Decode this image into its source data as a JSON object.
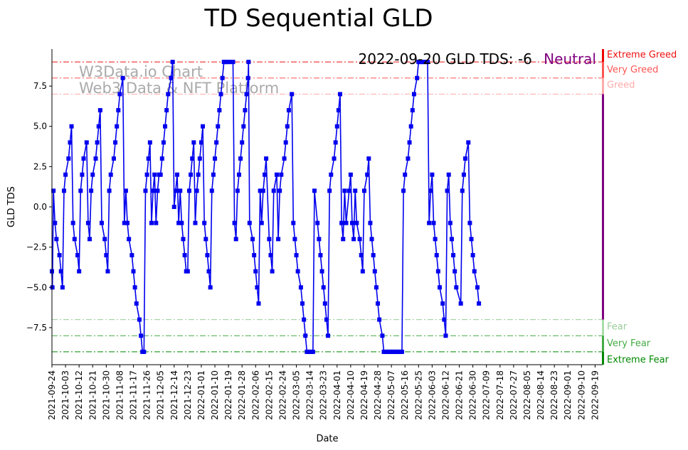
{
  "chart_data": {
    "type": "line",
    "title": "TD Sequential GLD",
    "xlabel": "Date",
    "ylabel": "GLD TDS",
    "ylim": [
      -9.8,
      9.8
    ],
    "y_ticks": [
      -7.5,
      -5.0,
      -2.5,
      0.0,
      2.5,
      5.0,
      7.5
    ],
    "y_tick_labels": [
      "−7.5",
      "−5.0",
      "−2.5",
      "0.0",
      "2.5",
      "5.0",
      "7.5"
    ],
    "x_start": "2021-09-24",
    "x_end": "2022-09-20",
    "x_tick_labels": [
      "2021-09-24",
      "2021-10-03",
      "2021-10-12",
      "2021-10-21",
      "2021-10-30",
      "2021-11-08",
      "2021-11-17",
      "2021-11-26",
      "2021-12-05",
      "2021-12-14",
      "2021-12-23",
      "2022-01-01",
      "2022-01-10",
      "2022-01-19",
      "2022-01-28",
      "2022-02-06",
      "2022-02-15",
      "2022-02-24",
      "2022-03-05",
      "2022-03-14",
      "2022-03-23",
      "2022-04-01",
      "2022-04-10",
      "2022-04-19",
      "2022-04-28",
      "2022-05-07",
      "2022-05-16",
      "2022-05-25",
      "2022-06-03",
      "2022-06-12",
      "2022-06-21",
      "2022-06-30",
      "2022-07-09",
      "2022-07-18",
      "2022-07-27",
      "2022-08-05",
      "2022-08-14",
      "2022-08-23",
      "2022-09-01",
      "2022-09-10",
      "2022-09-19"
    ],
    "series": [
      {
        "name": "GLD TDS",
        "color": "#0000ee",
        "points": [
          [
            0,
            -4
          ],
          [
            0.3,
            -5
          ],
          [
            1,
            1
          ],
          [
            2,
            -1
          ],
          [
            3,
            -2
          ],
          [
            5,
            -3
          ],
          [
            6,
            -4
          ],
          [
            7,
            -5
          ],
          [
            8,
            1
          ],
          [
            9,
            2
          ],
          [
            11,
            3
          ],
          [
            12,
            4
          ],
          [
            13,
            5
          ],
          [
            14,
            -1
          ],
          [
            15,
            -2
          ],
          [
            17,
            -3
          ],
          [
            18,
            -4
          ],
          [
            19,
            1
          ],
          [
            20,
            2
          ],
          [
            21,
            3
          ],
          [
            23,
            4
          ],
          [
            24,
            -1
          ],
          [
            25,
            -2
          ],
          [
            26,
            1
          ],
          [
            27,
            2
          ],
          [
            29,
            3
          ],
          [
            30,
            4
          ],
          [
            31,
            5
          ],
          [
            32,
            6
          ],
          [
            33,
            -1
          ],
          [
            35,
            -2
          ],
          [
            36,
            -3
          ],
          [
            37,
            -4
          ],
          [
            38,
            1
          ],
          [
            39,
            2
          ],
          [
            41,
            3
          ],
          [
            42,
            4
          ],
          [
            43,
            5
          ],
          [
            44,
            6
          ],
          [
            45,
            7
          ],
          [
            47,
            8
          ],
          [
            48,
            -1
          ],
          [
            49,
            1
          ],
          [
            50,
            -1
          ],
          [
            51,
            -2
          ],
          [
            53,
            -3
          ],
          [
            54,
            -4
          ],
          [
            55,
            -5
          ],
          [
            56,
            -6
          ],
          [
            58,
            -7
          ],
          [
            59,
            -8
          ],
          [
            60,
            -9
          ],
          [
            61,
            -9
          ],
          [
            62,
            1
          ],
          [
            63,
            2
          ],
          [
            64,
            3
          ],
          [
            65,
            4
          ],
          [
            66,
            -1
          ],
          [
            67,
            1
          ],
          [
            68,
            2
          ],
          [
            69,
            -1
          ],
          [
            70,
            1
          ],
          [
            71,
            2
          ],
          [
            72,
            2
          ],
          [
            73,
            3
          ],
          [
            74,
            4
          ],
          [
            75,
            5
          ],
          [
            76,
            6
          ],
          [
            77,
            7
          ],
          [
            79,
            8
          ],
          [
            80,
            9
          ],
          [
            81,
            0
          ],
          [
            82,
            1
          ],
          [
            83,
            2
          ],
          [
            84,
            -1
          ],
          [
            85,
            1
          ],
          [
            86,
            -1
          ],
          [
            87,
            -2
          ],
          [
            88,
            -3
          ],
          [
            89,
            -4
          ],
          [
            90,
            -4
          ],
          [
            91,
            1
          ],
          [
            92,
            2
          ],
          [
            93,
            3
          ],
          [
            94,
            4
          ],
          [
            95,
            -1
          ],
          [
            96,
            1
          ],
          [
            97,
            2
          ],
          [
            98,
            3
          ],
          [
            99,
            4
          ],
          [
            100,
            5
          ],
          [
            101,
            -1
          ],
          [
            102,
            -2
          ],
          [
            103,
            -3
          ],
          [
            104,
            -4
          ],
          [
            105,
            -5
          ],
          [
            106,
            1
          ],
          [
            107,
            2
          ],
          [
            108,
            3
          ],
          [
            109,
            4
          ],
          [
            110,
            5
          ],
          [
            111,
            6
          ],
          [
            112,
            7
          ],
          [
            113,
            8
          ],
          [
            114,
            9
          ],
          [
            115,
            9
          ],
          [
            116,
            9
          ],
          [
            117,
            9
          ],
          [
            118,
            9
          ],
          [
            120,
            9
          ],
          [
            121,
            -1
          ],
          [
            122,
            -2
          ],
          [
            123,
            1
          ],
          [
            124,
            2
          ],
          [
            125,
            3
          ],
          [
            126,
            4
          ],
          [
            127,
            5
          ],
          [
            128,
            6
          ],
          [
            129,
            7
          ],
          [
            130,
            8
          ],
          [
            130.3,
            9
          ],
          [
            131,
            -1
          ],
          [
            133,
            -2
          ],
          [
            134,
            -3
          ],
          [
            135,
            -4
          ],
          [
            136,
            -5
          ],
          [
            137,
            -6
          ],
          [
            138,
            1
          ],
          [
            139,
            -1
          ],
          [
            140,
            1
          ],
          [
            141,
            2
          ],
          [
            142,
            3
          ],
          [
            144,
            -2
          ],
          [
            145,
            -3
          ],
          [
            146,
            -4
          ],
          [
            147,
            1
          ],
          [
            149,
            2
          ],
          [
            150,
            -2
          ],
          [
            151,
            1
          ],
          [
            152,
            2
          ],
          [
            154,
            3
          ],
          [
            155,
            4
          ],
          [
            156,
            5
          ],
          [
            157,
            6
          ],
          [
            159,
            7
          ],
          [
            160,
            -1
          ],
          [
            161,
            -2
          ],
          [
            162,
            -3
          ],
          [
            163,
            -4
          ],
          [
            165,
            -5
          ],
          [
            166,
            -6
          ],
          [
            167,
            -7
          ],
          [
            168,
            -8
          ],
          [
            169,
            -9
          ],
          [
            170,
            -9
          ],
          [
            171,
            -9
          ],
          [
            172,
            -9
          ],
          [
            173,
            -9
          ],
          [
            174,
            1
          ],
          [
            176,
            -1
          ],
          [
            177,
            -2
          ],
          [
            178,
            -3
          ],
          [
            179,
            -4
          ],
          [
            180,
            -5
          ],
          [
            181,
            -6
          ],
          [
            182,
            -7
          ],
          [
            183,
            -8
          ],
          [
            184,
            1
          ],
          [
            185,
            2
          ],
          [
            187,
            3
          ],
          [
            188,
            4
          ],
          [
            189,
            5
          ],
          [
            190,
            6
          ],
          [
            191,
            7
          ],
          [
            192,
            -1
          ],
          [
            193,
            -2
          ],
          [
            194,
            1
          ],
          [
            195,
            -1
          ],
          [
            197,
            1
          ],
          [
            198,
            2
          ],
          [
            199,
            -1
          ],
          [
            200,
            -2
          ],
          [
            201,
            1
          ],
          [
            202,
            -1
          ],
          [
            204,
            -2
          ],
          [
            205,
            -3
          ],
          [
            206,
            -4
          ],
          [
            207,
            1
          ],
          [
            209,
            2
          ],
          [
            210,
            3
          ],
          [
            211,
            -1
          ],
          [
            212,
            -2
          ],
          [
            213,
            -3
          ],
          [
            214,
            -4
          ],
          [
            215,
            -5
          ],
          [
            216,
            -6
          ],
          [
            217,
            -7
          ],
          [
            219,
            -8
          ],
          [
            220,
            -9
          ],
          [
            221,
            -9
          ],
          [
            222,
            -9
          ],
          [
            223,
            -9
          ],
          [
            224,
            -9
          ],
          [
            225,
            -9
          ],
          [
            226,
            -9
          ],
          [
            227,
            -9
          ],
          [
            228,
            -9
          ],
          [
            229,
            -9
          ],
          [
            230,
            -9
          ],
          [
            231,
            -9
          ],
          [
            232,
            -9
          ],
          [
            233,
            1
          ],
          [
            234,
            2
          ],
          [
            236,
            3
          ],
          [
            237,
            4
          ],
          [
            238,
            5
          ],
          [
            239,
            6
          ],
          [
            240,
            7
          ],
          [
            242,
            8
          ],
          [
            243,
            9
          ],
          [
            244,
            9
          ],
          [
            245,
            9
          ],
          [
            246,
            9
          ],
          [
            247,
            9
          ],
          [
            248,
            9
          ],
          [
            249,
            9
          ],
          [
            250,
            -1
          ],
          [
            251,
            1
          ],
          [
            252,
            2
          ],
          [
            253,
            -1
          ],
          [
            254,
            -2
          ],
          [
            255,
            -3
          ],
          [
            256,
            -4
          ],
          [
            257,
            -5
          ],
          [
            259,
            -6
          ],
          [
            260,
            -7
          ],
          [
            261,
            -8
          ],
          [
            262,
            1
          ],
          [
            263,
            2
          ],
          [
            264,
            -1
          ],
          [
            265,
            -2
          ],
          [
            266,
            -3
          ],
          [
            267,
            -4
          ],
          [
            268,
            -5
          ],
          [
            271,
            -6
          ],
          [
            272,
            1
          ],
          [
            273,
            2
          ],
          [
            274,
            3
          ],
          [
            276,
            4
          ],
          [
            277,
            -1
          ],
          [
            278,
            -2
          ],
          [
            279,
            -3
          ],
          [
            280,
            -4
          ],
          [
            282,
            -5
          ],
          [
            283,
            -6
          ]
        ]
      }
    ],
    "reference_lines": [
      {
        "value": 9,
        "label": "Extreme Greed",
        "color": "#ee1111",
        "dash": "8,3,2,3"
      },
      {
        "value": 8,
        "label": "Very Greed",
        "color": "#ff5555",
        "dash": "8,3,2,3"
      },
      {
        "value": 7,
        "label": "Greed",
        "color": "#ffaaaa",
        "dash": "8,3,2,3"
      },
      {
        "value": -7,
        "label": "Fear",
        "color": "#99cc99",
        "dash": "8,3,2,3"
      },
      {
        "value": -8,
        "label": "Very Fear",
        "color": "#44aa44",
        "dash": "8,3,2,3"
      },
      {
        "value": -9,
        "label": "Extreme Fear",
        "color": "#008800",
        "dash": "8,3,2,3"
      }
    ],
    "annotation": {
      "date_text": "2022-09-20 GLD TDS: -6",
      "status_text": "Neutral",
      "status_color": "#800080"
    },
    "watermark": [
      "W3Data.io Chart",
      "Web3 Data & NFT Platform"
    ],
    "right_bar_segments": [
      {
        "from": 9,
        "to": 9.8,
        "color": "#ee0000"
      },
      {
        "from": 8,
        "to": 9,
        "color": "#ff5555"
      },
      {
        "from": 7,
        "to": 8,
        "color": "#ffaaaa"
      },
      {
        "from": -7,
        "to": 7,
        "color": "#800080"
      },
      {
        "from": -8,
        "to": -7,
        "color": "#aaddaa"
      },
      {
        "from": -9,
        "to": -8,
        "color": "#44aa44"
      },
      {
        "from": -9.8,
        "to": -9,
        "color": "#008800"
      }
    ]
  }
}
